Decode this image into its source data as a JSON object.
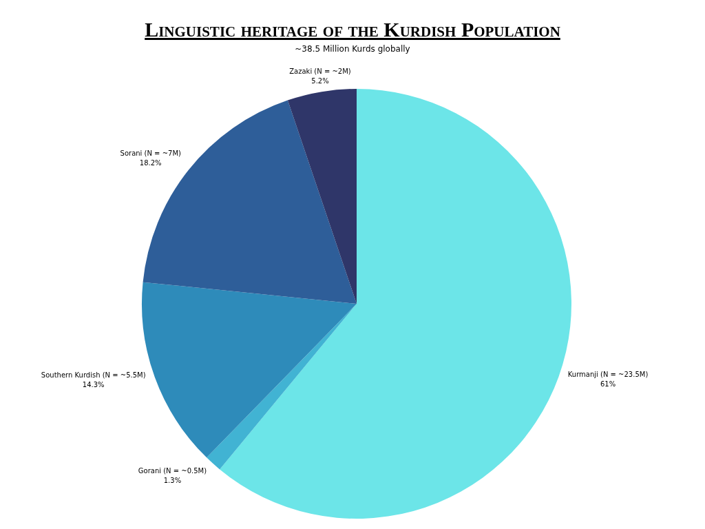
{
  "chart_data": {
    "type": "pie",
    "title": "Linguistic heritage of the Kurdish Population",
    "subtitle": "~38.5 Million Kurds globally",
    "categories": [
      "Kurmanji (N = ~23.5M)",
      "Gorani (N = ~0.5M)",
      "Southern Kurdish (N = ~5.5M)",
      "Sorani (N = ~7M)",
      "Zazaki (N = ~2M)"
    ],
    "values": [
      61,
      1.3,
      14.3,
      18.2,
      5.2
    ],
    "value_labels": [
      "61%",
      "1.3%",
      "14.3%",
      "18.2%",
      "5.2%"
    ],
    "colors": [
      "#6ce5e8",
      "#41b3d3",
      "#2e8bba",
      "#2e5e99",
      "#2f3669"
    ],
    "legend": false
  }
}
